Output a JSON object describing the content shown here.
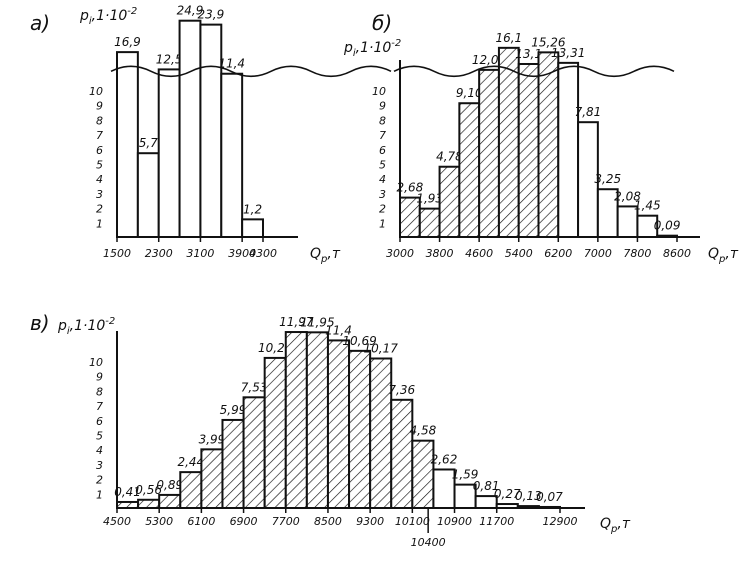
{
  "figure": {
    "y_label": "p",
    "y_label_sub": "i",
    "y_label_rest": ",1·10",
    "y_label_exp": "-2",
    "x_label": "Q",
    "x_label_sub": "p",
    "x_label_unit": ",т"
  },
  "chart_data": [
    {
      "type": "bar",
      "panel_label": "а)",
      "bin_edges": [
        1500,
        1900,
        2300,
        2700,
        3100,
        3500,
        3900,
        4300
      ],
      "values": [
        16.9,
        5.7,
        12.5,
        24.9,
        23.9,
        11.4,
        1.2
      ],
      "value_labels": [
        "16,9",
        "5,7",
        "12,5",
        "24,9",
        "23,9",
        "11,4",
        "1,2"
      ],
      "hatched": [
        false,
        false,
        false,
        false,
        false,
        false,
        false
      ],
      "x_tick_labels": [
        "1500",
        "2300",
        "3100",
        "3900",
        "4300"
      ],
      "x_tick_values": [
        1500,
        2300,
        3100,
        3900,
        4300
      ],
      "y_ticks": [
        1,
        2,
        3,
        4,
        5,
        6,
        7,
        8,
        9,
        10
      ],
      "y_break": true
    },
    {
      "type": "bar",
      "panel_label": "б)",
      "bin_edges": [
        3000,
        3400,
        3800,
        4200,
        4600,
        5000,
        5400,
        5800,
        6200,
        6600,
        7000,
        7400,
        7800,
        8200,
        8600
      ],
      "values": [
        2.68,
        1.93,
        4.78,
        9.1,
        12.01,
        16.1,
        13.1,
        15.26,
        13.31,
        7.81,
        3.25,
        2.08,
        1.45,
        0.09
      ],
      "value_labels": [
        "2,68",
        "1,93",
        "4,78",
        "9,10",
        "12,01",
        "16,1",
        "13,1",
        "15,26",
        "13,31",
        "7,81",
        "3,25",
        "2,08",
        "1,45",
        "0,09"
      ],
      "hatched": [
        true,
        true,
        true,
        true,
        true,
        true,
        true,
        true,
        false,
        false,
        false,
        false,
        false,
        false
      ],
      "x_tick_labels": [
        "3000",
        "3800",
        "4600",
        "5400",
        "6200",
        "7000",
        "7800",
        "8600"
      ],
      "x_tick_values": [
        3000,
        3800,
        4600,
        5400,
        6200,
        7000,
        7800,
        8600
      ],
      "y_ticks": [
        1,
        2,
        3,
        4,
        5,
        6,
        7,
        8,
        9,
        10
      ],
      "y_break": true
    },
    {
      "type": "bar",
      "panel_label": "в)",
      "bin_edges": [
        4500,
        4900,
        5300,
        5700,
        6100,
        6500,
        6900,
        7300,
        7700,
        8100,
        8500,
        8900,
        9300,
        9700,
        10100,
        10500,
        10900,
        11300,
        11700,
        12100,
        12500,
        12900
      ],
      "values": [
        0.41,
        0.56,
        0.89,
        2.44,
        3.99,
        5.99,
        7.53,
        10.21,
        11.97,
        11.95,
        11.4,
        10.69,
        10.17,
        7.36,
        4.58,
        2.62,
        1.59,
        0.81,
        0.27,
        0.13,
        0.07
      ],
      "value_labels": [
        "0,41",
        "0,56",
        "0,89",
        "2,44",
        "3,99",
        "5,99",
        "7,53",
        "10,21",
        "11,97",
        "11,95",
        "11,4",
        "10,69",
        "10,17",
        "7,36",
        "4,58",
        "2,62",
        "1,59",
        "0,81",
        "0,27",
        "0,13",
        "0,07"
      ],
      "hatched": [
        true,
        true,
        true,
        true,
        true,
        true,
        true,
        true,
        true,
        true,
        true,
        true,
        true,
        true,
        true,
        false,
        false,
        false,
        false,
        false,
        false
      ],
      "x_tick_labels": [
        "4500",
        "5300",
        "6100",
        "6900",
        "7700",
        "8500",
        "9300",
        "10100",
        "10900",
        "11700",
        "12900"
      ],
      "x_tick_values": [
        4500,
        5300,
        6100,
        6900,
        7700,
        8500,
        9300,
        10100,
        10900,
        11700,
        12900
      ],
      "x_marker_label": "10400",
      "x_marker_value": 10400,
      "y_ticks": [
        1,
        2,
        3,
        4,
        5,
        6,
        7,
        8,
        9,
        10
      ],
      "y_break": false
    }
  ]
}
